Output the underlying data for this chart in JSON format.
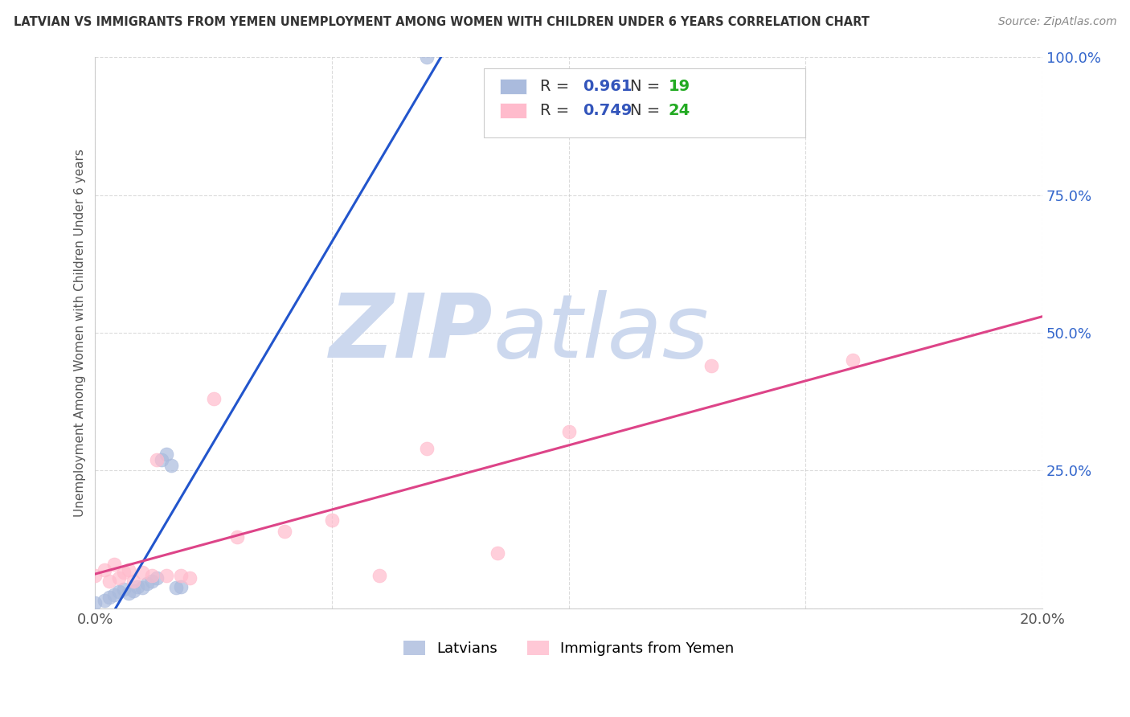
{
  "title": "LATVIAN VS IMMIGRANTS FROM YEMEN UNEMPLOYMENT AMONG WOMEN WITH CHILDREN UNDER 6 YEARS CORRELATION CHART",
  "source": "Source: ZipAtlas.com",
  "ylabel": "Unemployment Among Women with Children Under 6 years",
  "xlim": [
    0.0,
    0.2
  ],
  "ylim": [
    0.0,
    1.0
  ],
  "xticks": [
    0.0,
    0.05,
    0.1,
    0.15,
    0.2
  ],
  "yticks": [
    0.0,
    0.25,
    0.5,
    0.75,
    1.0
  ],
  "xticklabels": [
    "0.0%",
    "",
    "",
    "",
    "20.0%"
  ],
  "yticklabels": [
    "",
    "25.0%",
    "50.0%",
    "75.0%",
    "100.0%"
  ],
  "legend_labels": [
    "Latvians",
    "Immigrants from Yemen"
  ],
  "series1_color": "#aabbdd",
  "series1_R": 0.961,
  "series1_N": 19,
  "series1_x": [
    0.0,
    0.002,
    0.003,
    0.004,
    0.005,
    0.006,
    0.007,
    0.008,
    0.009,
    0.01,
    0.011,
    0.012,
    0.013,
    0.014,
    0.015,
    0.016,
    0.017,
    0.018,
    0.07
  ],
  "series1_y": [
    0.01,
    0.015,
    0.02,
    0.025,
    0.03,
    0.035,
    0.028,
    0.032,
    0.04,
    0.038,
    0.045,
    0.05,
    0.055,
    0.27,
    0.28,
    0.26,
    0.038,
    0.04,
    1.0
  ],
  "series2_color": "#ffbbcc",
  "series2_R": 0.749,
  "series2_N": 24,
  "series2_x": [
    0.0,
    0.002,
    0.003,
    0.004,
    0.005,
    0.006,
    0.007,
    0.008,
    0.01,
    0.012,
    0.013,
    0.015,
    0.018,
    0.02,
    0.025,
    0.03,
    0.04,
    0.05,
    0.06,
    0.07,
    0.085,
    0.1,
    0.13,
    0.16
  ],
  "series2_y": [
    0.06,
    0.07,
    0.05,
    0.08,
    0.055,
    0.065,
    0.07,
    0.05,
    0.065,
    0.06,
    0.27,
    0.06,
    0.06,
    0.055,
    0.38,
    0.13,
    0.14,
    0.16,
    0.06,
    0.29,
    0.1,
    0.32,
    0.44,
    0.45
  ],
  "trend1_color": "#2255cc",
  "trend2_color": "#dd4488",
  "watermark_zip": "ZIP",
  "watermark_atlas": "atlas",
  "watermark_color": "#ccd8ee",
  "background_color": "#ffffff",
  "grid_color": "#cccccc",
  "title_color": "#333333",
  "source_color": "#888888",
  "ylabel_color": "#555555",
  "tick_color": "#3366cc",
  "legend_R_color": "#3355bb",
  "legend_N_color": "#22aa22"
}
